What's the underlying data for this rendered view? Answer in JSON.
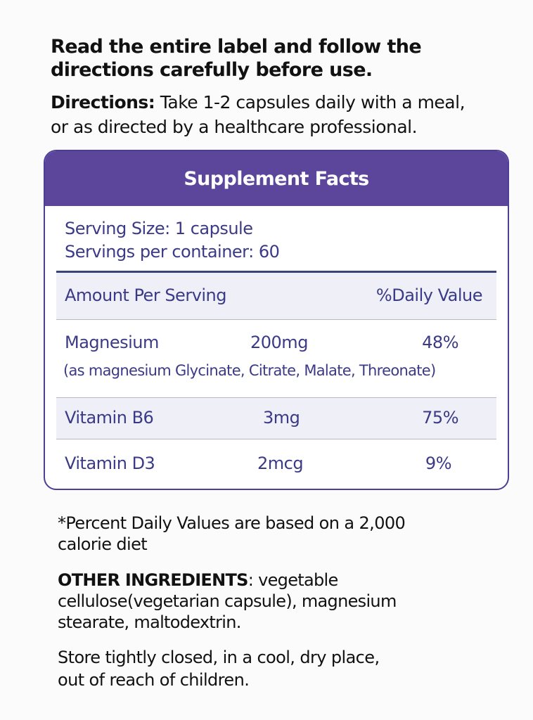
{
  "warning": {
    "line1": "Read the entire label and follow the",
    "line2": "directions carefully before use."
  },
  "directions": {
    "label": "Directions:",
    "line1": " Take 1-2 capsules daily with a meal,",
    "line2": "or as directed by a healthcare professional."
  },
  "supplement_facts": {
    "title": "Supplement Facts",
    "serving_size": "Serving Size: 1 capsule",
    "servings_per_container": "Servings per container: 60",
    "header": {
      "amount": "Amount Per Serving",
      "daily_value": "%Daily Value"
    },
    "rows": [
      {
        "name": "Magnesium",
        "amount": "200mg",
        "dv": "48%",
        "note": "(as magnesium Glycinate, Citrate, Malate, Threonate)"
      },
      {
        "name": "Vitamin B6",
        "amount": "3mg",
        "dv": "75%"
      },
      {
        "name": "Vitamin D3",
        "amount": "2mcg",
        "dv": "9%"
      }
    ]
  },
  "footnote": {
    "line1": "*Percent Daily Values are based on a 2,000",
    "line2": "calorie diet"
  },
  "other_ingredients": {
    "label": "OTHER INGREDIENTS",
    "line1": ": vegetable",
    "line2": "cellulose(vegetarian capsule), magnesium",
    "line3": "stearate, maltodextrin."
  },
  "storage": {
    "line1": "Store tightly closed, in a cool, dry place,",
    "line2": "out of reach of children."
  },
  "colors": {
    "header_purple": "#5b469c",
    "text_indigo": "#3b3a86",
    "shaded_row": "#efeff7"
  }
}
